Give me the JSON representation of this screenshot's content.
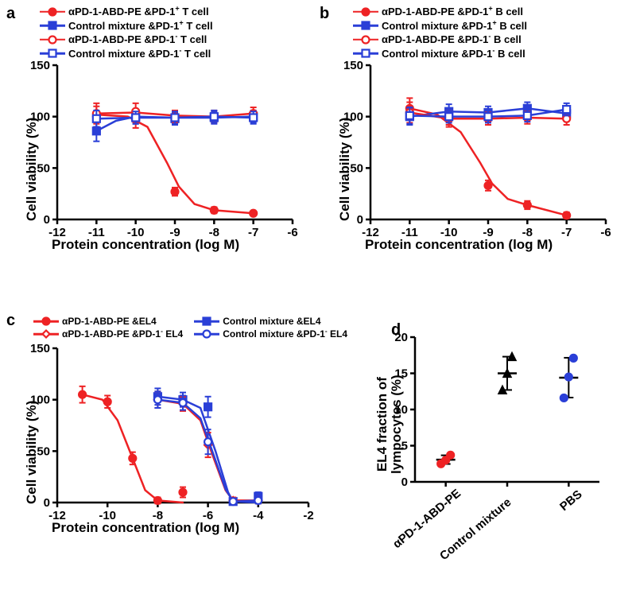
{
  "colors": {
    "red": "#ee2224",
    "blue": "#2a3fd7",
    "black": "#000000",
    "bg": "#ffffff"
  },
  "typography": {
    "axis_title_fontsize": 17,
    "tick_fontsize": 15,
    "legend_fontsize": 13,
    "panel_label_fontsize": 20,
    "font_family": "Arial"
  },
  "panel_a": {
    "label": "a",
    "type": "line-scatter",
    "x_label": "Protein concentration (log M)",
    "y_label": "Cell viability (%)",
    "xlim": [
      -12,
      -6
    ],
    "ylim": [
      0,
      150
    ],
    "xticks": [
      -12,
      -11,
      -10,
      -9,
      -8,
      -7,
      -6
    ],
    "yticks": [
      0,
      50,
      100,
      150
    ],
    "line_width": 2.5,
    "marker_size": 9,
    "legend": [
      {
        "text_html": "αPD-1-ABD-PE &PD-1<sup>+</sup> T cell",
        "color": "#ee2224",
        "marker": "circle",
        "fill": true
      },
      {
        "text_html": "Control mixture &PD-1<sup>+</sup> T cell",
        "color": "#2a3fd7",
        "marker": "square",
        "fill": true
      },
      {
        "text_html": "αPD-1-ABD-PE &PD-1<sup>-</sup> T cell",
        "color": "#ee2224",
        "marker": "circle",
        "fill": false
      },
      {
        "text_html": "Control mixture &PD-1<sup>-</sup> T cell",
        "color": "#2a3fd7",
        "marker": "square",
        "fill": false
      }
    ],
    "series": [
      {
        "id": "a1",
        "color": "#ee2224",
        "marker": "circle",
        "fill": true,
        "x": [
          -11,
          -10,
          -9,
          -8,
          -7
        ],
        "y": [
          100,
          97,
          27,
          9,
          6
        ],
        "yerr": [
          10,
          8,
          4,
          3,
          2
        ],
        "curve": [
          [
            -11,
            102
          ],
          [
            -10.2,
            100
          ],
          [
            -9.7,
            90
          ],
          [
            -9.2,
            55
          ],
          [
            -8.9,
            32
          ],
          [
            -8.5,
            15
          ],
          [
            -8,
            9
          ],
          [
            -7,
            6
          ]
        ]
      },
      {
        "id": "a2",
        "color": "#2a3fd7",
        "marker": "square",
        "fill": true,
        "x": [
          -11,
          -10,
          -9,
          -8,
          -7
        ],
        "y": [
          86,
          100,
          98,
          99,
          100
        ],
        "yerr": [
          10,
          7,
          6,
          6,
          6
        ],
        "curve": [
          [
            -11,
            86
          ],
          [
            -10.5,
            96
          ],
          [
            -10,
            100
          ],
          [
            -9,
            99
          ],
          [
            -8,
            99
          ],
          [
            -7,
            100
          ]
        ]
      },
      {
        "id": "a3",
        "color": "#ee2224",
        "marker": "circle",
        "fill": false,
        "x": [
          -11,
          -10,
          -9,
          -8,
          -7
        ],
        "y": [
          103,
          105,
          100,
          100,
          103
        ],
        "yerr": [
          10,
          8,
          6,
          6,
          6
        ],
        "curve": [
          [
            -11,
            103
          ],
          [
            -10,
            104
          ],
          [
            -9,
            101
          ],
          [
            -8,
            100
          ],
          [
            -7,
            103
          ]
        ]
      },
      {
        "id": "a4",
        "color": "#2a3fd7",
        "marker": "square",
        "fill": false,
        "x": [
          -11,
          -10,
          -9,
          -8,
          -7
        ],
        "y": [
          98,
          99,
          99,
          100,
          99
        ],
        "yerr": [
          8,
          6,
          6,
          6,
          6
        ],
        "curve": [
          [
            -11,
            98
          ],
          [
            -10,
            99
          ],
          [
            -9,
            99
          ],
          [
            -8,
            100
          ],
          [
            -7,
            99
          ]
        ]
      }
    ]
  },
  "panel_b": {
    "label": "b",
    "type": "line-scatter",
    "x_label": "Protein concentration (log M)",
    "y_label": "Cell viability (%)",
    "xlim": [
      -12,
      -6
    ],
    "ylim": [
      0,
      150
    ],
    "xticks": [
      -12,
      -11,
      -10,
      -9,
      -8,
      -7,
      -6
    ],
    "yticks": [
      0,
      50,
      100,
      150
    ],
    "line_width": 2.5,
    "marker_size": 9,
    "legend": [
      {
        "text_html": "αPD-1-ABD-PE &PD-1<sup>+</sup> B cell",
        "color": "#ee2224",
        "marker": "circle",
        "fill": true
      },
      {
        "text_html": "Control mixture &PD-1<sup>+</sup> B cell",
        "color": "#2a3fd7",
        "marker": "square",
        "fill": true
      },
      {
        "text_html": "αPD-1-ABD-PE &PD-1<sup>-</sup> B cell",
        "color": "#ee2224",
        "marker": "circle",
        "fill": false
      },
      {
        "text_html": "Control mixture &PD-1<sup>-</sup> B cell",
        "color": "#2a3fd7",
        "marker": "square",
        "fill": false
      }
    ],
    "series": [
      {
        "id": "b1",
        "color": "#ee2224",
        "marker": "circle",
        "fill": true,
        "x": [
          -11,
          -10,
          -9,
          -8,
          -7
        ],
        "y": [
          108,
          100,
          33,
          14,
          4
        ],
        "yerr": [
          10,
          8,
          5,
          4,
          3
        ],
        "curve": [
          [
            -11,
            108
          ],
          [
            -10.3,
            102
          ],
          [
            -9.7,
            85
          ],
          [
            -9.2,
            55
          ],
          [
            -8.9,
            35
          ],
          [
            -8.5,
            20
          ],
          [
            -8,
            14
          ],
          [
            -7,
            4
          ]
        ]
      },
      {
        "id": "b2",
        "color": "#2a3fd7",
        "marker": "square",
        "fill": true,
        "x": [
          -11,
          -10,
          -9,
          -8,
          -7
        ],
        "y": [
          100,
          105,
          104,
          108,
          103
        ],
        "yerr": [
          8,
          7,
          6,
          6,
          6
        ],
        "curve": [
          [
            -11,
            100
          ],
          [
            -10,
            105
          ],
          [
            -9,
            104
          ],
          [
            -8,
            108
          ],
          [
            -7,
            103
          ]
        ]
      },
      {
        "id": "b3",
        "color": "#ee2224",
        "marker": "circle",
        "fill": false,
        "x": [
          -11,
          -10,
          -9,
          -8,
          -7
        ],
        "y": [
          104,
          98,
          98,
          99,
          98
        ],
        "yerr": [
          10,
          8,
          6,
          6,
          6
        ],
        "curve": [
          [
            -11,
            104
          ],
          [
            -10,
            98
          ],
          [
            -9,
            98
          ],
          [
            -8,
            99
          ],
          [
            -7,
            98
          ]
        ]
      },
      {
        "id": "b4",
        "color": "#2a3fd7",
        "marker": "square",
        "fill": false,
        "x": [
          -11,
          -10,
          -9,
          -8,
          -7
        ],
        "y": [
          101,
          100,
          100,
          101,
          107
        ],
        "yerr": [
          8,
          6,
          6,
          6,
          6
        ],
        "curve": [
          [
            -11,
            101
          ],
          [
            -10,
            100
          ],
          [
            -9,
            100
          ],
          [
            -8,
            101
          ],
          [
            -7,
            107
          ]
        ]
      }
    ]
  },
  "panel_c": {
    "label": "c",
    "type": "line-scatter",
    "x_label": "Protein concentration (log M)",
    "y_label": "Cell viability (%)",
    "xlim": [
      -12,
      -2
    ],
    "ylim": [
      0,
      150
    ],
    "xticks": [
      -12,
      -10,
      -8,
      -6,
      -4,
      -2
    ],
    "yticks": [
      0,
      50,
      100,
      150
    ],
    "line_width": 2.5,
    "marker_size": 9,
    "legend": [
      {
        "text_html": "αPD-1-ABD-PE &EL4",
        "color": "#ee2224",
        "marker": "circle",
        "fill": true
      },
      {
        "text_html": "Control mixture &EL4",
        "color": "#2a3fd7",
        "marker": "square",
        "fill": true
      },
      {
        "text_html": "αPD-1-ABD-PE &PD-1<sup>-</sup> EL4",
        "color": "#ee2224",
        "marker": "diamond",
        "fill": false
      },
      {
        "text_html": "Control mixture &PD-1<sup>-</sup> EL4",
        "color": "#2a3fd7",
        "marker": "circle",
        "fill": false
      }
    ],
    "series": [
      {
        "id": "c1",
        "color": "#ee2224",
        "marker": "circle",
        "fill": true,
        "x": [
          -11,
          -10,
          -9,
          -8,
          -7
        ],
        "y": [
          105,
          98,
          43,
          2,
          10
        ],
        "yerr": [
          8,
          6,
          6,
          3,
          5
        ],
        "curve": [
          [
            -11,
            105
          ],
          [
            -10.2,
            100
          ],
          [
            -9.6,
            80
          ],
          [
            -9.0,
            43
          ],
          [
            -8.5,
            12
          ],
          [
            -8,
            2
          ],
          [
            -7,
            0
          ]
        ]
      },
      {
        "id": "c2",
        "color": "#2a3fd7",
        "marker": "square",
        "fill": true,
        "x": [
          -8,
          -7,
          -6,
          -5,
          -4
        ],
        "y": [
          103,
          100,
          93,
          1,
          6
        ],
        "yerr": [
          8,
          7,
          10,
          3,
          4
        ],
        "curve": [
          [
            -8,
            103
          ],
          [
            -7,
            100
          ],
          [
            -6.3,
            92
          ],
          [
            -5.7,
            50
          ],
          [
            -5.2,
            10
          ],
          [
            -5,
            1
          ],
          [
            -4,
            0
          ]
        ]
      },
      {
        "id": "c3",
        "color": "#ee2224",
        "marker": "diamond",
        "fill": false,
        "x": [
          -8,
          -7,
          -6,
          -5,
          -4
        ],
        "y": [
          100,
          96,
          56,
          2,
          2
        ],
        "yerr": [
          8,
          7,
          12,
          3,
          3
        ],
        "curve": [
          [
            -8,
            100
          ],
          [
            -7,
            96
          ],
          [
            -6.3,
            80
          ],
          [
            -5.8,
            45
          ],
          [
            -5.3,
            12
          ],
          [
            -5,
            2
          ],
          [
            -4,
            2
          ]
        ]
      },
      {
        "id": "c4",
        "color": "#2a3fd7",
        "marker": "circle",
        "fill": false,
        "x": [
          -8,
          -7,
          -6,
          -5,
          -4
        ],
        "y": [
          100,
          97,
          59,
          1,
          2
        ],
        "yerr": [
          8,
          7,
          12,
          3,
          3
        ],
        "curve": [
          [
            -8,
            100
          ],
          [
            -7,
            97
          ],
          [
            -6.3,
            82
          ],
          [
            -5.8,
            48
          ],
          [
            -5.3,
            13
          ],
          [
            -5,
            1
          ],
          [
            -4,
            2
          ]
        ]
      }
    ]
  },
  "panel_d": {
    "label": "d",
    "type": "categorical-scatter",
    "y_label_html": "EL4 fraction of<br>lympocytes (%)",
    "ylim": [
      0,
      20
    ],
    "yticks": [
      0,
      5,
      10,
      15,
      20
    ],
    "marker_size": 9,
    "categories": [
      {
        "name": "αPD-1-ABD-PE",
        "color": "#ee2224",
        "marker": "circle",
        "fill": true,
        "values": [
          2.5,
          3.0,
          3.7
        ],
        "mean": 3.07,
        "sd": 0.6
      },
      {
        "name": "Control mixture",
        "color": "#000000",
        "marker": "triangle",
        "fill": true,
        "values": [
          12.7,
          15.0,
          17.3
        ],
        "mean": 15.0,
        "sd": 2.3
      },
      {
        "name": "PBS",
        "color": "#2a3fd7",
        "marker": "circle",
        "fill": true,
        "values": [
          11.6,
          14.5,
          17.1
        ],
        "mean": 14.4,
        "sd": 2.75
      }
    ]
  }
}
